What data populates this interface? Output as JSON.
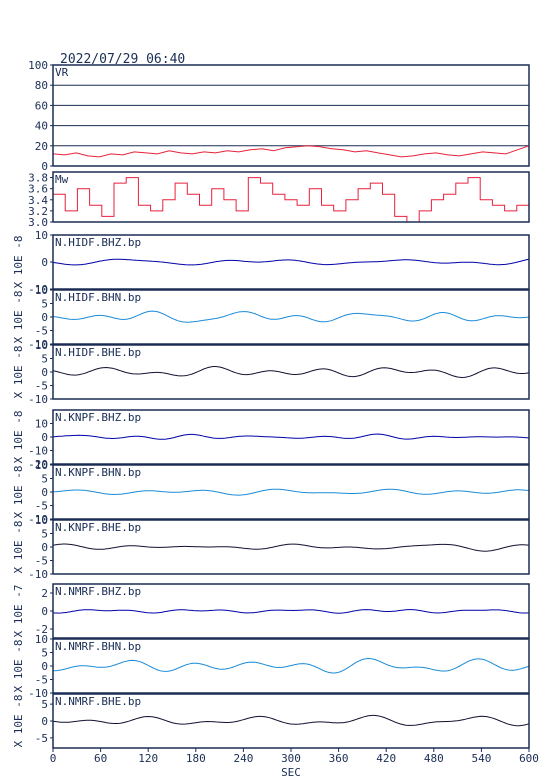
{
  "header": {
    "timestamp": "2022/07/29 06:40"
  },
  "x_axis": {
    "label": "SEC",
    "range": [
      0,
      600
    ],
    "ticks": [
      0,
      60,
      120,
      180,
      240,
      300,
      360,
      420,
      480,
      540,
      600
    ]
  },
  "colors": {
    "red": "#e8203c",
    "navy": "#0000a8",
    "sky": "#1a8bd8",
    "black": "#101030",
    "frame": "#1a2d55",
    "grid": "#1a2d55"
  },
  "chart_data": [
    {
      "type": "line",
      "panel": "vr",
      "label": "VR",
      "ylim": [
        0,
        100
      ],
      "yticks": [
        "0",
        "20",
        "40",
        "60",
        "80",
        "100"
      ],
      "ytick_values": [
        0,
        20,
        40,
        60,
        80,
        100
      ],
      "grid": true,
      "color": "red",
      "series": "vr",
      "y": [
        12,
        11,
        13,
        10,
        9,
        12,
        11,
        14,
        13,
        12,
        15,
        13,
        12,
        14,
        13,
        15,
        14,
        16,
        17,
        15,
        18,
        19,
        20,
        19,
        17,
        16,
        14,
        15,
        13,
        11,
        9,
        10,
        12,
        13,
        11,
        10,
        12,
        14,
        13,
        12,
        16,
        20
      ]
    },
    {
      "type": "line",
      "panel": "mw",
      "label": "Mw",
      "ylim": [
        3.0,
        3.9
      ],
      "yticks": [
        "3.0",
        "3.2",
        "3.4",
        "3.6",
        "3.8"
      ],
      "ytick_values": [
        3.0,
        3.2,
        3.4,
        3.6,
        3.8
      ],
      "grid": false,
      "color": "red",
      "series": "mw",
      "y": [
        3.5,
        3.2,
        3.6,
        3.3,
        3.1,
        3.7,
        3.8,
        3.3,
        3.2,
        3.4,
        3.7,
        3.5,
        3.3,
        3.6,
        3.4,
        3.2,
        3.8,
        3.7,
        3.5,
        3.4,
        3.3,
        3.6,
        3.3,
        3.2,
        3.4,
        3.6,
        3.7,
        3.5,
        3.1,
        3.0,
        3.2,
        3.4,
        3.5,
        3.7,
        3.8,
        3.4,
        3.3,
        3.2,
        3.3,
        3.5
      ]
    },
    {
      "type": "line",
      "panel": "wave",
      "label": "N.HIDF.BHZ.bp",
      "ylabel": "X 10E -8",
      "ylim": [
        -10,
        10
      ],
      "yticks": [
        "-10",
        "0",
        "10"
      ],
      "ytick_values": [
        -10,
        0,
        10
      ],
      "color": "navy",
      "amplitude": 1.2,
      "seed": 11
    },
    {
      "type": "line",
      "panel": "wave",
      "label": "N.HIDF.BHN.bp",
      "ylabel": "X 10E -8",
      "ylim": [
        -10,
        10
      ],
      "yticks": [
        "-10",
        "-5",
        "0",
        "5",
        "10"
      ],
      "ytick_values": [
        -10,
        -5,
        0,
        5,
        10
      ],
      "color": "sky",
      "amplitude": 2.2,
      "seed": 23
    },
    {
      "type": "line",
      "panel": "wave",
      "label": "N.HIDF.BHE.bp",
      "ylabel": "X 10E -8",
      "ylim": [
        -10,
        10
      ],
      "yticks": [
        "-10",
        "-5",
        "0",
        "5",
        "10"
      ],
      "ytick_values": [
        -10,
        -5,
        0,
        5,
        10
      ],
      "color": "black",
      "amplitude": 1.8,
      "seed": 37
    },
    {
      "type": "line",
      "panel": "wave",
      "label": "N.KNPF.BHZ.bp",
      "ylabel": "X 10E -8",
      "ylim": [
        -20,
        20
      ],
      "yticks": [
        "-20",
        "-10",
        "0",
        "10"
      ],
      "ytick_values": [
        -20,
        -10,
        0,
        10
      ],
      "color": "navy",
      "amplitude": 1.4,
      "seed": 41
    },
    {
      "type": "line",
      "panel": "wave",
      "label": "N.KNPF.BHN.bp",
      "ylabel": "X 10E -8",
      "ylim": [
        -10,
        10
      ],
      "yticks": [
        "-10",
        "-5",
        "0",
        "5",
        "10"
      ],
      "ytick_values": [
        -10,
        -5,
        0,
        5,
        10
      ],
      "color": "sky",
      "amplitude": 1.5,
      "seed": 53
    },
    {
      "type": "line",
      "panel": "wave",
      "label": "N.KNPF.BHE.bp",
      "ylabel": "X 10E -8",
      "ylim": [
        -10,
        10
      ],
      "yticks": [
        "-10",
        "-5",
        "0",
        "5",
        "10"
      ],
      "ytick_values": [
        -10,
        -5,
        0,
        5,
        10
      ],
      "color": "black",
      "amplitude": 1.3,
      "seed": 67
    },
    {
      "type": "line",
      "panel": "wave",
      "label": "N.NMRF.BHZ.bp",
      "ylabel": "X 10E -7",
      "ylim": [
        -3,
        3
      ],
      "yticks": [
        "-2",
        "0",
        "2"
      ],
      "ytick_values": [
        -2,
        0,
        2
      ],
      "color": "navy",
      "amplitude": 0.2,
      "seed": 71
    },
    {
      "type": "line",
      "panel": "wave",
      "label": "N.NMRF.BHN.bp",
      "ylabel": "X 10E -8",
      "ylim": [
        -10,
        10
      ],
      "yticks": [
        "-10",
        "-5",
        "0",
        "5",
        "10"
      ],
      "ytick_values": [
        -10,
        -5,
        0,
        5,
        10
      ],
      "color": "sky",
      "amplitude": 1.6,
      "seed": 83
    },
    {
      "type": "line",
      "panel": "wave",
      "label": "N.NMRF.BHE.bp",
      "ylabel": "X 10E -8",
      "ylim": [
        -8,
        8
      ],
      "yticks": [
        "-5",
        "0",
        "5"
      ],
      "ytick_values": [
        -5,
        0,
        5
      ],
      "color": "black",
      "amplitude": 1.5,
      "seed": 97
    }
  ]
}
